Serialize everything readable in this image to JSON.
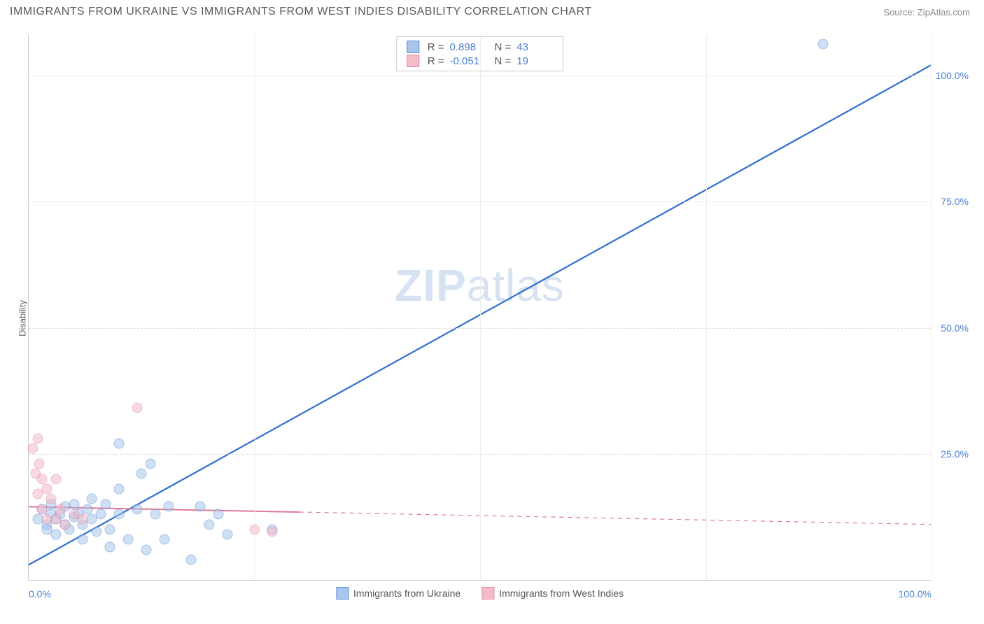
{
  "header": {
    "title": "IMMIGRANTS FROM UKRAINE VS IMMIGRANTS FROM WEST INDIES DISABILITY CORRELATION CHART",
    "source_label": "Source: ",
    "source_value": "ZipAtlas.com"
  },
  "chart": {
    "type": "scatter",
    "ylabel": "Disability",
    "watermark_a": "ZIP",
    "watermark_b": "atlas",
    "xlim": [
      0,
      100
    ],
    "ylim": [
      0,
      108
    ],
    "yticks": [
      25,
      50,
      75,
      100
    ],
    "ytick_labels": [
      "25.0%",
      "50.0%",
      "75.0%",
      "100.0%"
    ],
    "xticks_lines": [
      25,
      50,
      75,
      100
    ],
    "xtick_left": "0.0%",
    "xtick_right": "100.0%",
    "grid_color": "#dddddd",
    "axis_color": "#cccccc",
    "background_color": "#ffffff",
    "series": [
      {
        "name": "Immigrants from Ukraine",
        "fill_color": "#a9c6ec",
        "stroke_color": "#5b8ed6",
        "line_color": "#2f6fd0",
        "line_width": 2.2,
        "marker_radius": 7.5,
        "marker_opacity": 0.55,
        "R": "0.898",
        "N": "43",
        "trend": {
          "x1": 0,
          "y1": 3,
          "x2": 100,
          "y2": 102,
          "dash_from_x": null
        },
        "points": [
          [
            1,
            12
          ],
          [
            1.5,
            14
          ],
          [
            2,
            11
          ],
          [
            2,
            10
          ],
          [
            2.5,
            13
          ],
          [
            2.5,
            15
          ],
          [
            3,
            12
          ],
          [
            3,
            9
          ],
          [
            3.5,
            13
          ],
          [
            4,
            14.5
          ],
          [
            4,
            11
          ],
          [
            4.5,
            10
          ],
          [
            5,
            12.5
          ],
          [
            5,
            15
          ],
          [
            5.5,
            13
          ],
          [
            6,
            11
          ],
          [
            6,
            8
          ],
          [
            6.5,
            14
          ],
          [
            7,
            16
          ],
          [
            7,
            12
          ],
          [
            7.5,
            9.5
          ],
          [
            8,
            13
          ],
          [
            8.5,
            15
          ],
          [
            9,
            6.5
          ],
          [
            9,
            10
          ],
          [
            10,
            27
          ],
          [
            10,
            13
          ],
          [
            11,
            8
          ],
          [
            12,
            14
          ],
          [
            12.5,
            21
          ],
          [
            13,
            6
          ],
          [
            13.5,
            23
          ],
          [
            14,
            13
          ],
          [
            15,
            8
          ],
          [
            15.5,
            14.5
          ],
          [
            18,
            4
          ],
          [
            19,
            14.5
          ],
          [
            20,
            11
          ],
          [
            22,
            9
          ],
          [
            21,
            13
          ],
          [
            27,
            10
          ],
          [
            10,
            18
          ],
          [
            88,
            106
          ]
        ]
      },
      {
        "name": "Immigrants from West Indies",
        "fill_color": "#f4bbc9",
        "stroke_color": "#e48ba2",
        "line_color": "#e27a96",
        "line_width": 2.0,
        "marker_radius": 7.5,
        "marker_opacity": 0.55,
        "R": "-0.051",
        "N": "19",
        "trend": {
          "x1": 0,
          "y1": 14.5,
          "x2": 100,
          "y2": 11,
          "dash_from_x": 30
        },
        "points": [
          [
            0.5,
            26
          ],
          [
            0.8,
            21
          ],
          [
            1,
            28
          ],
          [
            1,
            17
          ],
          [
            1.2,
            23
          ],
          [
            1.5,
            20
          ],
          [
            1.5,
            14
          ],
          [
            2,
            18
          ],
          [
            2,
            12
          ],
          [
            2.5,
            16
          ],
          [
            3,
            12
          ],
          [
            3,
            20
          ],
          [
            3.5,
            14
          ],
          [
            4,
            11
          ],
          [
            5,
            13
          ],
          [
            6,
            12
          ],
          [
            12,
            34
          ],
          [
            25,
            10
          ],
          [
            27,
            9.5
          ]
        ]
      }
    ],
    "bottom_legend": [
      {
        "label": "Immigrants from Ukraine",
        "fill": "#a9c6ec",
        "stroke": "#5b8ed6"
      },
      {
        "label": "Immigrants from West Indies",
        "fill": "#f4bbc9",
        "stroke": "#e48ba2"
      }
    ]
  }
}
